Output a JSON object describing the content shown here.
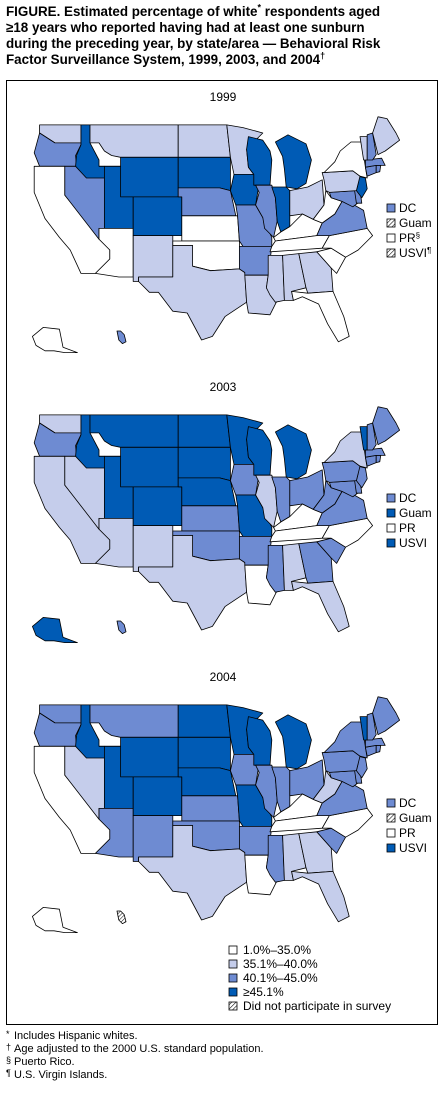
{
  "title": {
    "line1": "FIGURE. Estimated percentage of white",
    "mark_white": "*",
    "line1b": " respondents aged",
    "line2": "≥18 years who reported having had at least one sunburn",
    "line3": "during the preceding year, by state/area — Behavioral Risk",
    "line4": "Factor Surveillance System, 1999, 2003, and 2004",
    "mark_age": "†"
  },
  "colors": {
    "c1": "#ffffff",
    "c2": "#c5cdeb",
    "c3": "#6e8bd2",
    "c4": "#005bb5",
    "border": "#ffffff",
    "outline": "#000000",
    "hatch": "#000000"
  },
  "icons": {
    "hatch": "diagonal-hatch-icon",
    "swatch": "square-swatch-icon"
  },
  "maps": [
    {
      "year": "1999",
      "states": {
        "WA": "c2",
        "OR": "c3",
        "CA": "c1",
        "NV": "c3",
        "ID": "c4",
        "MT": "c2",
        "WY": "c4",
        "UT": "c4",
        "AZ": "c1",
        "CO": "c4",
        "NM": "c2",
        "ND": "c2",
        "SD": "c4",
        "NE": "c3",
        "KS": "c1",
        "OK": "c1",
        "TX": "c2",
        "MN": "c2",
        "IA": "c4",
        "MO": "c3",
        "AR": "c3",
        "LA": "c2",
        "WI": "c4",
        "IL": "c3",
        "IN": "c4",
        "MI": "c4",
        "OH": "c2",
        "KY": "c1",
        "TN": "c1",
        "MS": "c2",
        "AL": "c2",
        "GA": "c2",
        "FL": "c1",
        "SC": "c1",
        "NC": "c1",
        "VA": "c3",
        "WV": "c1",
        "MD": "c3",
        "DE": "c3",
        "NJ": "c4",
        "PA": "c2",
        "NY": "c1",
        "CT": "c3",
        "RI": "c3",
        "MA": "c3",
        "VT": "c2",
        "NH": "c3",
        "ME": "c2",
        "AK": "c1",
        "HI": "c3"
      },
      "legend": [
        {
          "label": "DC",
          "fill": "c3",
          "mark": ""
        },
        {
          "label": "Guam",
          "fill": "hatch",
          "mark": ""
        },
        {
          "label": "PR",
          "fill": "c1",
          "mark": "§"
        },
        {
          "label": "USVI",
          "fill": "hatch",
          "mark": "¶"
        }
      ]
    },
    {
      "year": "2003",
      "states": {
        "WA": "c2",
        "OR": "c3",
        "CA": "c2",
        "NV": "c2",
        "ID": "c4",
        "MT": "c4",
        "WY": "c4",
        "UT": "c4",
        "AZ": "c2",
        "CO": "c4",
        "NM": "c2",
        "ND": "c4",
        "SD": "c4",
        "NE": "c4",
        "KS": "c3",
        "OK": "c3",
        "TX": "c2",
        "MN": "c4",
        "IA": "c3",
        "MO": "c4",
        "AR": "c3",
        "LA": "c1",
        "WI": "c4",
        "IL": "c2",
        "IN": "c3",
        "MI": "c4",
        "OH": "c3",
        "KY": "c1",
        "TN": "c1",
        "MS": "c3",
        "AL": "c2",
        "GA": "c3",
        "FL": "c2",
        "SC": "c3",
        "NC": "c1",
        "VA": "c3",
        "WV": "c3",
        "MD": "c3",
        "DE": "c3",
        "NJ": "c3",
        "PA": "c3",
        "NY": "c2",
        "CT": "c3",
        "RI": "c3",
        "MA": "c3",
        "VT": "c4",
        "NH": "c3",
        "ME": "c3",
        "AK": "c4",
        "HI": "c3"
      },
      "legend": [
        {
          "label": "DC",
          "fill": "c3",
          "mark": ""
        },
        {
          "label": "Guam",
          "fill": "c4",
          "mark": ""
        },
        {
          "label": "PR",
          "fill": "c1",
          "mark": ""
        },
        {
          "label": "USVI",
          "fill": "c4",
          "mark": ""
        }
      ]
    },
    {
      "year": "2004",
      "states": {
        "WA": "c3",
        "OR": "c3",
        "CA": "c1",
        "NV": "c2",
        "ID": "c4",
        "MT": "c3",
        "WY": "c4",
        "UT": "c4",
        "AZ": "c3",
        "CO": "c4",
        "NM": "c3",
        "ND": "c4",
        "SD": "c4",
        "NE": "c4",
        "KS": "c3",
        "OK": "c3",
        "TX": "c2",
        "MN": "c4",
        "IA": "c3",
        "MO": "c4",
        "AR": "c3",
        "LA": "c1",
        "WI": "c4",
        "IL": "c3",
        "IN": "c3",
        "MI": "c4",
        "OH": "c3",
        "KY": "c1",
        "TN": "c1",
        "MS": "c3",
        "AL": "c2",
        "GA": "c2",
        "FL": "c2",
        "SC": "c3",
        "NC": "c1",
        "VA": "c3",
        "WV": "c2",
        "MD": "c3",
        "DE": "c3",
        "NJ": "c3",
        "PA": "c3",
        "NY": "c3",
        "CT": "c3",
        "RI": "c3",
        "MA": "c3",
        "VT": "c4",
        "NH": "c3",
        "ME": "c3",
        "AK": "c1",
        "HI": "hatch"
      },
      "legend": [
        {
          "label": "DC",
          "fill": "c3",
          "mark": ""
        },
        {
          "label": "Guam",
          "fill": "hatch",
          "mark": ""
        },
        {
          "label": "PR",
          "fill": "c1",
          "mark": ""
        },
        {
          "label": "USVI",
          "fill": "c4",
          "mark": ""
        }
      ]
    }
  ],
  "key": [
    {
      "label": "1.0%–35.0%",
      "fill": "c1"
    },
    {
      "label": "35.1%–40.0%",
      "fill": "c2"
    },
    {
      "label": "40.1%–45.0%",
      "fill": "c3"
    },
    {
      "label": "≥45.1%",
      "fill": "c4"
    },
    {
      "label": "Did not participate in survey",
      "fill": "hatch"
    }
  ],
  "footnotes": [
    {
      "mark": "*",
      "text": "Includes Hispanic whites."
    },
    {
      "mark": "†",
      "text": "Age adjusted to the 2000 U.S. standard population."
    },
    {
      "mark": "§",
      "text": "Puerto Rico."
    },
    {
      "mark": "¶",
      "text": "U.S. Virgin Islands."
    }
  ]
}
